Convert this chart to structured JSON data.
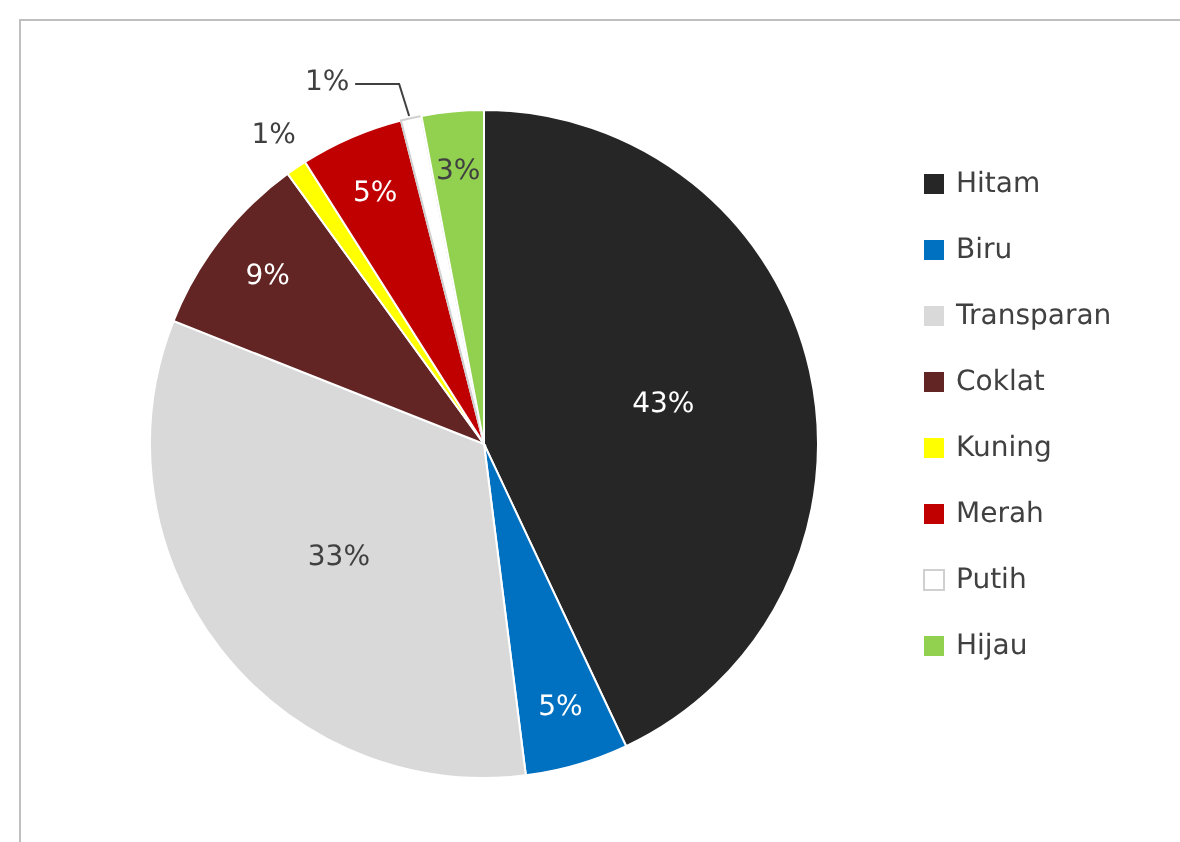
{
  "chart_data": {
    "type": "pie",
    "categories": [
      "Hitam",
      "Biru",
      "Transparan",
      "Coklat",
      "Kuning",
      "Merah",
      "Putih",
      "Hijau"
    ],
    "values": [
      43,
      5,
      33,
      9,
      1,
      5,
      1,
      3
    ],
    "colors": [
      "#262626",
      "#0070c0",
      "#d9d9d9",
      "#632523",
      "#ffff00",
      "#c00000",
      "#ffffff",
      "#92d050"
    ],
    "value_labels": [
      "43%",
      "5%",
      "33%",
      "9%",
      "1%",
      "5%",
      "1%",
      "3%"
    ],
    "legend": "right"
  }
}
